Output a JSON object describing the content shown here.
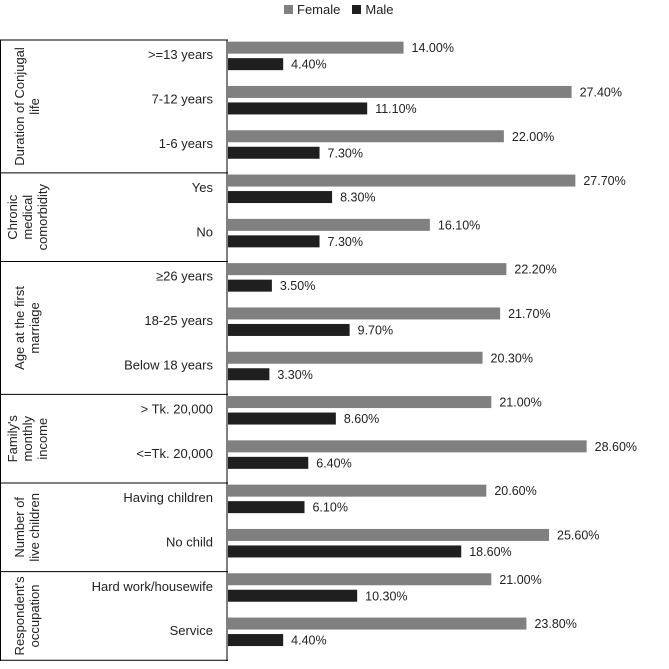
{
  "chart_data": {
    "type": "bar",
    "orientation": "horizontal",
    "title": "",
    "xlabel": "",
    "ylabel": "",
    "xlim": [
      0,
      30
    ],
    "grid": false,
    "legend_position": "top",
    "colors": {
      "Female": "#808080",
      "Male": "#1f1f1f"
    },
    "series": [
      {
        "name": "Female"
      },
      {
        "name": "Male"
      }
    ],
    "groups": [
      {
        "label": "Duration of Conjugal life",
        "label_lines": [
          "Duration of Conjugal",
          "life"
        ],
        "categories": [
          {
            "label": ">=13 years",
            "female": 14.0,
            "male": 4.4,
            "female_label": "14.00%",
            "male_label": "4.40%"
          },
          {
            "label": "7-12 years",
            "female": 27.4,
            "male": 11.1,
            "female_label": "27.40%",
            "male_label": "11.10%"
          },
          {
            "label": "1-6 years",
            "female": 22.0,
            "male": 7.3,
            "female_label": "22.00%",
            "male_label": "7.30%"
          }
        ]
      },
      {
        "label": "Chronic medical comorbidity",
        "label_lines": [
          "Chronic",
          "medical",
          "comorbidity"
        ],
        "categories": [
          {
            "label": "Yes",
            "female": 27.7,
            "male": 8.3,
            "female_label": "27.70%",
            "male_label": "8.30%"
          },
          {
            "label": "No",
            "female": 16.1,
            "male": 7.3,
            "female_label": "16.10%",
            "male_label": "7.30%"
          }
        ]
      },
      {
        "label": "Age at the first marriage",
        "label_lines": [
          "Age at the first",
          "marriage"
        ],
        "categories": [
          {
            "label": "≥26 years",
            "female": 22.2,
            "male": 3.5,
            "female_label": "22.20%",
            "male_label": "3.50%"
          },
          {
            "label": "18-25 years",
            "female": 21.7,
            "male": 9.7,
            "female_label": "21.70%",
            "male_label": "9.70%"
          },
          {
            "label": "Below 18 years",
            "female": 20.3,
            "male": 3.3,
            "female_label": "20.30%",
            "male_label": "3.30%"
          }
        ]
      },
      {
        "label": "Family's monthly income",
        "label_lines": [
          "Family's",
          "monthly",
          "income"
        ],
        "categories": [
          {
            "label": "> Tk. 20,000",
            "female": 21.0,
            "male": 8.6,
            "female_label": "21.00%",
            "male_label": "8.60%"
          },
          {
            "label": "<=Tk. 20,000",
            "female": 28.6,
            "male": 6.4,
            "female_label": "28.60%",
            "male_label": "6.40%"
          }
        ]
      },
      {
        "label": "Number of live children",
        "label_lines": [
          "Number of",
          "live children"
        ],
        "categories": [
          {
            "label": "Having children",
            "female": 20.6,
            "male": 6.1,
            "female_label": "20.60%",
            "male_label": "6.10%"
          },
          {
            "label": "No child",
            "female": 25.6,
            "male": 18.6,
            "female_label": "25.60%",
            "male_label": "18.60%"
          }
        ]
      },
      {
        "label": "Respondent's occupation",
        "label_lines": [
          "Respondent's",
          "occupation"
        ],
        "categories": [
          {
            "label": "Hard work/housewife",
            "female": 21.0,
            "male": 10.3,
            "female_label": "21.00%",
            "male_label": "10.30%"
          },
          {
            "label": "Service",
            "female": 23.8,
            "male": 4.4,
            "female_label": "23.80%",
            "male_label": "4.40%"
          }
        ]
      }
    ]
  }
}
